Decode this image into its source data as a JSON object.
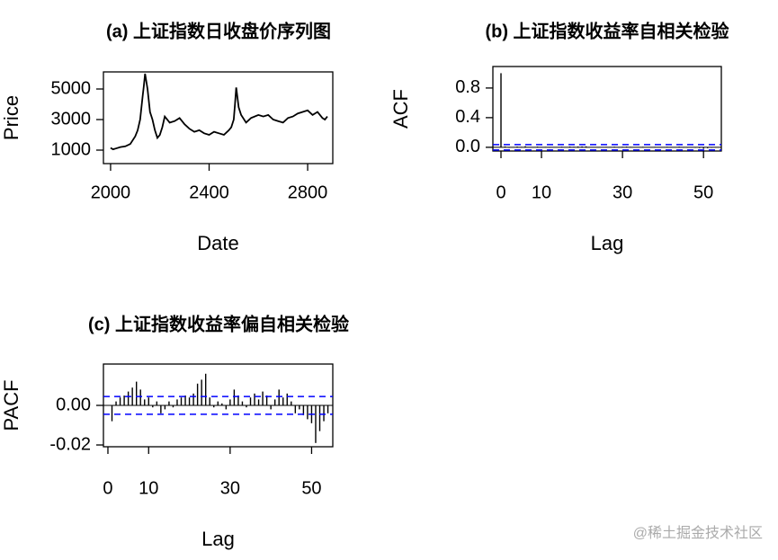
{
  "chart_data": [
    {
      "type": "line",
      "title": "(a) 上证指数日收盘价序列图",
      "x_label": "Date",
      "y_label": "Price",
      "color": "#000000",
      "x": [
        2000,
        2010,
        2020,
        2040,
        2060,
        2080,
        2100,
        2110,
        2120,
        2130,
        2135,
        2140,
        2150,
        2160,
        2170,
        2180,
        2190,
        2200,
        2210,
        2220,
        2240,
        2260,
        2280,
        2300,
        2320,
        2340,
        2360,
        2380,
        2400,
        2420,
        2440,
        2460,
        2480,
        2490,
        2500,
        2505,
        2510,
        2520,
        2530,
        2550,
        2570,
        2600,
        2620,
        2640,
        2660,
        2680,
        2700,
        2720,
        2740,
        2760,
        2780,
        2800,
        2820,
        2840,
        2860,
        2870,
        2880
      ],
      "values": [
        1150,
        1050,
        1100,
        1200,
        1250,
        1400,
        1900,
        2300,
        3000,
        4500,
        5200,
        6000,
        5000,
        3500,
        3000,
        2300,
        1800,
        2000,
        2500,
        3200,
        2800,
        2900,
        3100,
        2700,
        2400,
        2200,
        2300,
        2100,
        2000,
        2200,
        2100,
        2000,
        2300,
        2500,
        3000,
        4000,
        5100,
        3800,
        3300,
        2800,
        3100,
        3300,
        3200,
        3300,
        3000,
        2900,
        2800,
        3100,
        3200,
        3400,
        3500,
        3600,
        3300,
        3500,
        3100,
        3000,
        3200
      ],
      "xlim": [
        1971,
        2902
      ],
      "xticks": [
        2000,
        2400,
        2800
      ],
      "ylim": [
        118,
        6118
      ],
      "yticks": [
        1000,
        3000,
        5000
      ]
    },
    {
      "type": "bar",
      "title": "(b) 上证指数收益率自相关检验",
      "x_label": "Lag",
      "y_label": "ACF",
      "color": "#000000",
      "x": [
        0,
        1,
        2,
        3,
        4,
        5,
        6,
        7,
        8,
        9,
        10,
        11,
        12,
        13,
        14,
        15,
        16,
        17,
        18,
        19,
        20,
        21,
        22,
        23,
        24,
        25,
        26,
        27,
        28,
        29,
        30,
        31,
        32,
        33,
        34,
        35,
        36,
        37,
        38,
        39,
        40,
        41,
        42,
        43,
        44,
        45,
        46,
        47,
        48,
        49,
        50,
        51,
        52,
        53,
        54
      ],
      "values": [
        1,
        0.012,
        -0.008,
        0.005,
        0.01,
        0.006,
        0.015,
        0.004,
        -0.003,
        0.009,
        -0.002,
        0.006,
        -0.005,
        0.003,
        0.004,
        0.008,
        0.002,
        0.01,
        0.007,
        0.011,
        0.012,
        0.013,
        0.004,
        0.003,
        -0.002,
        0.001,
        0.006,
        0.005,
        0.008,
        -0.003,
        0.007,
        0.009,
        0.006,
        0.004,
        0.002,
        0.007,
        0.004,
        0.003,
        0.006,
        0.002,
        0.004,
        0.007,
        0.005,
        0.001,
        0.008,
        -0.004,
        -0.005,
        -0.003,
        -0.006,
        -0.01,
        -0.02,
        -0.012,
        -0.007,
        -0.003,
        0.002
      ],
      "hlines": [
        0.037,
        -0.037
      ],
      "hline_color": "#0000ff",
      "xlim": [
        -2,
        54.4
      ],
      "xticks": [
        0,
        10,
        30,
        50
      ],
      "ylim": [
        -0.05,
        1.09
      ],
      "yticks": [
        {
          "value": 0,
          "label": "0.0"
        },
        0.4,
        0.8
      ]
    },
    {
      "type": "bar",
      "title": "(c) 上证指数收益率偏自相关检验",
      "x_label": "Lag",
      "y_label": "PACF",
      "color": "#000000",
      "x": [
        1,
        2,
        3,
        4,
        5,
        6,
        7,
        8,
        9,
        10,
        11,
        12,
        13,
        14,
        15,
        16,
        17,
        18,
        19,
        20,
        21,
        22,
        23,
        24,
        25,
        26,
        27,
        28,
        29,
        30,
        31,
        32,
        33,
        34,
        35,
        36,
        37,
        38,
        39,
        40,
        41,
        42,
        43,
        44,
        45,
        46,
        47,
        48,
        49,
        50,
        51,
        52,
        53,
        54
      ],
      "values": [
        -0.008,
        0.002,
        0.004,
        0.005,
        0.007,
        0.009,
        0.012,
        0.008,
        0.003,
        0.004,
        -0.001,
        0.002,
        -0.004,
        -0.002,
        0.002,
        -0.001,
        0.003,
        0.004,
        0.005,
        0.004,
        0.006,
        0.011,
        0.013,
        0.016,
        0.004,
        -0.001,
        0.002,
        0.001,
        -0.002,
        0.003,
        0.008,
        0.005,
        0.002,
        -0.001,
        0.004,
        0.006,
        0.003,
        0.007,
        0.005,
        -0.002,
        0.003,
        0.008,
        0.004,
        0.006,
        0.002,
        -0.004,
        -0.002,
        -0.005,
        -0.007,
        -0.009,
        -0.019,
        -0.013,
        -0.008,
        -0.004
      ],
      "hlines": [
        0.0045,
        -0.0045
      ],
      "hline_color": "#0000ff",
      "xlim": [
        -1.1,
        55.2
      ],
      "xticks": [
        0,
        10,
        30,
        50
      ],
      "ylim": [
        -0.0209,
        0.0209
      ],
      "yticks": [
        -0.02,
        {
          "value": 0,
          "label": "0.00"
        }
      ]
    }
  ],
  "watermark": "@稀土掘金技术社区"
}
